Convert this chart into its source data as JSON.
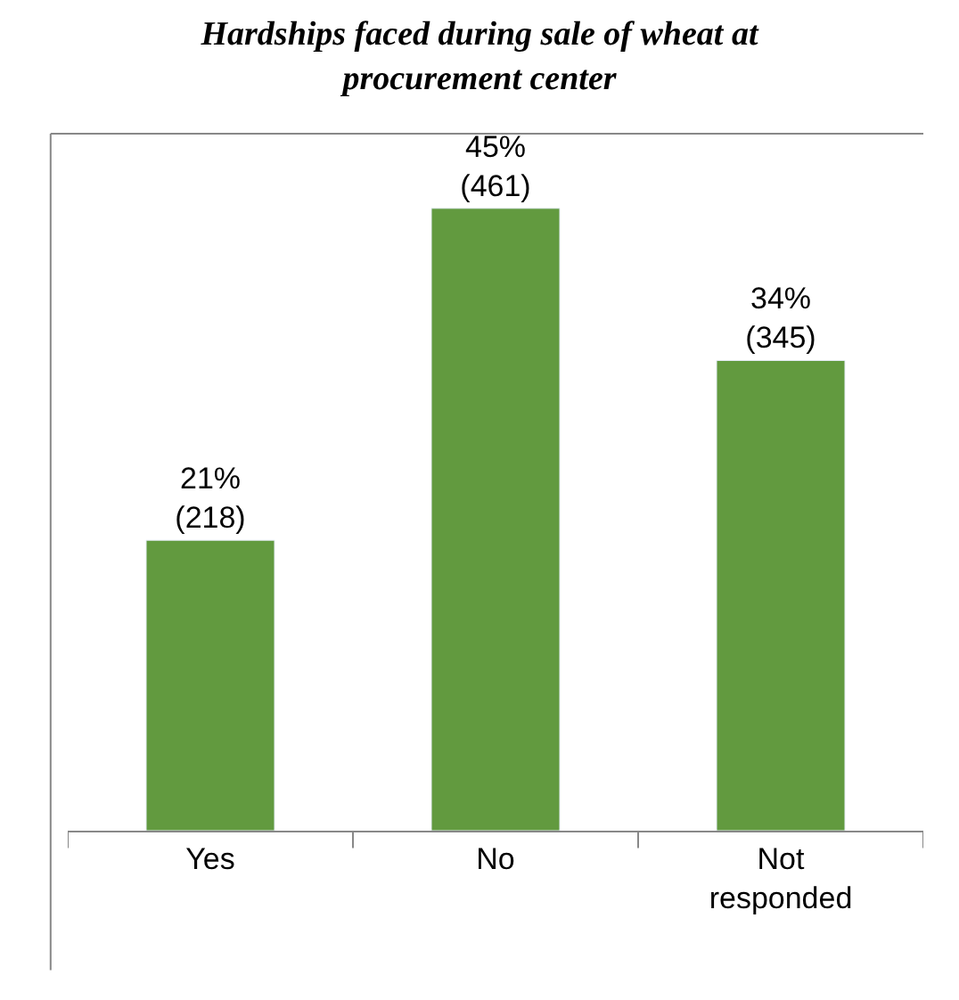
{
  "chart_data": {
    "type": "bar",
    "title": "Hardships faced during sale of wheat at procurement center",
    "categories": [
      "Yes",
      "No",
      "Not responded"
    ],
    "values": [
      21,
      45,
      34
    ],
    "value_labels": [
      "21%\n(218)",
      "45%\n(461)",
      "34%\n(345)"
    ],
    "color": "#629a3f"
  }
}
